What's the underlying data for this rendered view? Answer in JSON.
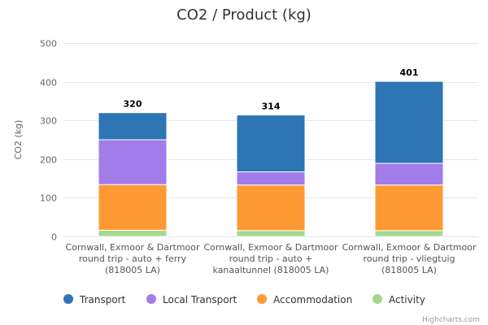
{
  "chart_data": {
    "type": "bar",
    "stacked": true,
    "title": "CO2 / Product (kg)",
    "xlabel": "",
    "ylabel": "CO2 (kg)",
    "ylim": [
      0,
      500
    ],
    "yticks": [
      0,
      100,
      200,
      300,
      400,
      500
    ],
    "categories": [
      [
        "Cornwall, Exmoor & Dartmoor",
        "round trip - auto + ferry",
        "(818005 LA)"
      ],
      [
        "Cornwall, Exmoor & Dartmoor",
        "round trip - auto +",
        "kanaaltunnel (818005 LA)"
      ],
      [
        "Cornwall, Exmoor & Dartmoor",
        "round trip - vliegtuig",
        "(818005 LA)"
      ]
    ],
    "series": [
      {
        "name": "Transport",
        "color": "#2e75b6",
        "values": [
          70,
          147,
          212
        ]
      },
      {
        "name": "Local Transport",
        "color": "#a27ce8",
        "values": [
          116,
          34,
          56
        ]
      },
      {
        "name": "Accommodation",
        "color": "#ff9933",
        "values": [
          118,
          118,
          118
        ]
      },
      {
        "name": "Activity",
        "color": "#a3d98c",
        "values": [
          16,
          15,
          15
        ]
      }
    ],
    "totals": [
      320,
      314,
      401
    ],
    "legend_position": "bottom"
  },
  "credits": "Highcharts.com"
}
